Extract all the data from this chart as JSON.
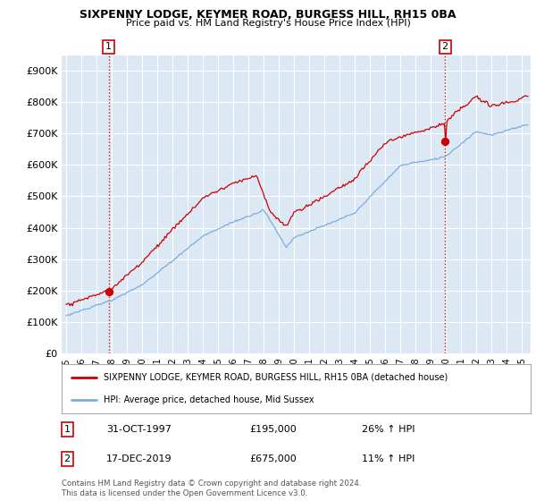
{
  "title1": "SIXPENNY LODGE, KEYMER ROAD, BURGESS HILL, RH15 0BA",
  "title2": "Price paid vs. HM Land Registry's House Price Index (HPI)",
  "ylim": [
    0,
    950000
  ],
  "yticks": [
    0,
    100000,
    200000,
    300000,
    400000,
    500000,
    600000,
    700000,
    800000,
    900000
  ],
  "ytick_labels": [
    "£0",
    "£100K",
    "£200K",
    "£300K",
    "£400K",
    "£500K",
    "£600K",
    "£700K",
    "£800K",
    "£900K"
  ],
  "sale1_x": 1997.79,
  "sale1_price": 195000,
  "sale2_x": 2019.96,
  "sale2_price": 675000,
  "legend_red_label": "SIXPENNY LODGE, KEYMER ROAD, BURGESS HILL, RH15 0BA (detached house)",
  "legend_blue_label": "HPI: Average price, detached house, Mid Sussex",
  "annotation1_date": "31-OCT-1997",
  "annotation1_price": "£195,000",
  "annotation1_hpi": "26% ↑ HPI",
  "annotation2_date": "17-DEC-2019",
  "annotation2_price": "£675,000",
  "annotation2_hpi": "11% ↑ HPI",
  "footer": "Contains HM Land Registry data © Crown copyright and database right 2024.\nThis data is licensed under the Open Government Licence v3.0.",
  "red_color": "#cc0000",
  "blue_color": "#7aace0",
  "bg_plot_color": "#dce9f5",
  "background_color": "#ffffff",
  "grid_color": "#ffffff"
}
